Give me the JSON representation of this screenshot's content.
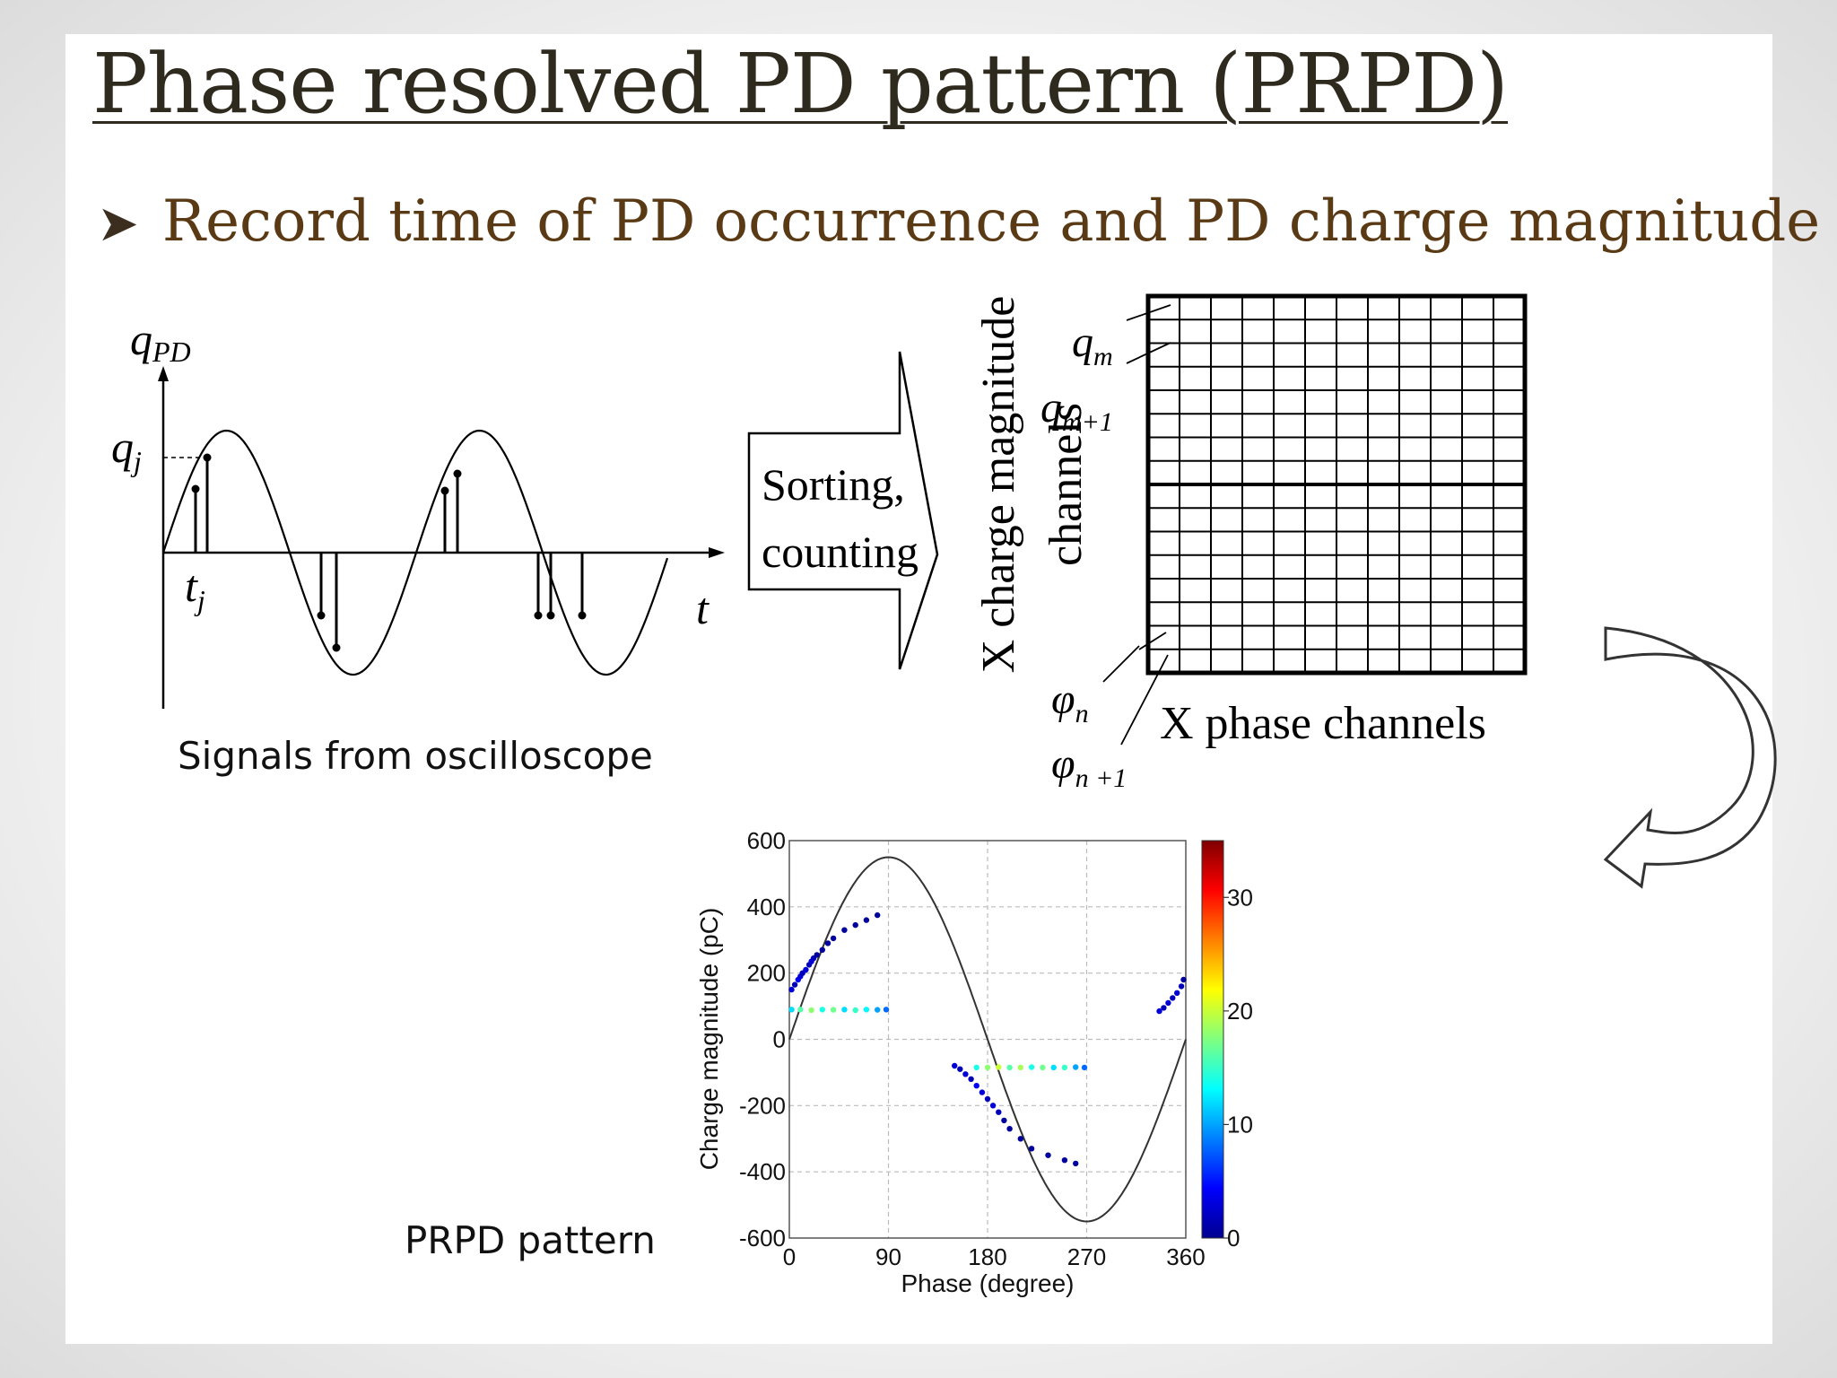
{
  "slide": {
    "title": "Phase resolved PD pattern (PRPD)",
    "bullet": "Record time of PD occurrence and PD charge magnitude",
    "bullet_icon": "arrowhead-bullet-icon"
  },
  "oscilloscope": {
    "y_axis_label": "q",
    "y_axis_sub": "PD",
    "level_label": "q",
    "level_sub": "j",
    "time_label": "t",
    "time_sub": "j",
    "t_axis_label": "t",
    "caption": "Signals from oscilloscope"
  },
  "arrow_box": {
    "line1": "Sorting,",
    "line2": "counting"
  },
  "grid": {
    "rows": 16,
    "cols": 12,
    "y_label_line1": "X charge magnitude",
    "y_label_line2": "channels",
    "qm": "q",
    "qm_sub": "m",
    "qm1": "q",
    "qm1_sub": "m+1",
    "phin": "φ",
    "phin_sub": "n",
    "phin1": "φ",
    "phin1_sub": "n +1",
    "x_label": "X phase channels"
  },
  "prpd_caption": "PRPD pattern",
  "chart_data": {
    "type": "scatter",
    "xlabel": "Phase (degree)",
    "ylabel": "Charge magnitude (pC)",
    "xlim": [
      0,
      360
    ],
    "ylim": [
      -600,
      600
    ],
    "xticks": [
      0,
      90,
      180,
      270,
      360
    ],
    "yticks": [
      600,
      400,
      200,
      0,
      -200,
      -400,
      -600
    ],
    "grid": true,
    "reference_curve": {
      "shape": "sine",
      "amplitude": 550,
      "period": 360
    },
    "colorbar": {
      "min": 0,
      "max": 35,
      "ticks": [
        0,
        10,
        20,
        30
      ],
      "colormap": "jet"
    },
    "series": [
      {
        "points": [
          [
            2,
            150,
            3
          ],
          [
            5,
            165,
            2
          ],
          [
            8,
            180,
            4
          ],
          [
            10,
            190,
            3
          ],
          [
            12,
            200,
            2
          ],
          [
            15,
            210,
            3
          ],
          [
            18,
            225,
            2
          ],
          [
            20,
            235,
            3
          ],
          [
            22,
            245,
            2
          ],
          [
            25,
            255,
            1
          ],
          [
            30,
            270,
            1
          ],
          [
            35,
            290,
            1
          ],
          [
            40,
            305,
            1
          ],
          [
            50,
            330,
            1
          ],
          [
            60,
            345,
            1
          ],
          [
            70,
            360,
            1
          ],
          [
            80,
            375,
            1
          ]
        ]
      },
      {
        "points": [
          [
            2,
            90,
            12
          ],
          [
            10,
            90,
            16
          ],
          [
            20,
            88,
            18
          ],
          [
            30,
            90,
            14
          ],
          [
            40,
            89,
            17
          ],
          [
            50,
            90,
            12
          ],
          [
            60,
            88,
            15
          ],
          [
            70,
            90,
            13
          ],
          [
            80,
            89,
            10
          ],
          [
            88,
            90,
            8
          ]
        ]
      },
      {
        "points": [
          [
            150,
            -80,
            3
          ],
          [
            155,
            -90,
            2
          ],
          [
            160,
            -105,
            3
          ],
          [
            165,
            -120,
            2
          ],
          [
            170,
            -140,
            4
          ],
          [
            175,
            -160,
            3
          ],
          [
            180,
            -180,
            2
          ],
          [
            185,
            -200,
            3
          ],
          [
            190,
            -220,
            2
          ],
          [
            195,
            -245,
            1
          ],
          [
            200,
            -270,
            1
          ],
          [
            210,
            -300,
            1
          ],
          [
            220,
            -330,
            1
          ],
          [
            235,
            -350,
            1
          ],
          [
            250,
            -365,
            1
          ],
          [
            260,
            -375,
            1
          ]
        ]
      },
      {
        "points": [
          [
            170,
            -85,
            14
          ],
          [
            180,
            -85,
            18
          ],
          [
            190,
            -84,
            20
          ],
          [
            200,
            -85,
            16
          ],
          [
            210,
            -85,
            19
          ],
          [
            220,
            -84,
            14
          ],
          [
            230,
            -85,
            17
          ],
          [
            240,
            -85,
            12
          ],
          [
            250,
            -85,
            15
          ],
          [
            260,
            -84,
            10
          ],
          [
            268,
            -85,
            8
          ]
        ]
      },
      {
        "points": [
          [
            336,
            85,
            3
          ],
          [
            340,
            95,
            2
          ],
          [
            344,
            110,
            3
          ],
          [
            348,
            125,
            2
          ],
          [
            352,
            140,
            3
          ],
          [
            356,
            160,
            2
          ],
          [
            358,
            180,
            1
          ]
        ]
      }
    ]
  }
}
